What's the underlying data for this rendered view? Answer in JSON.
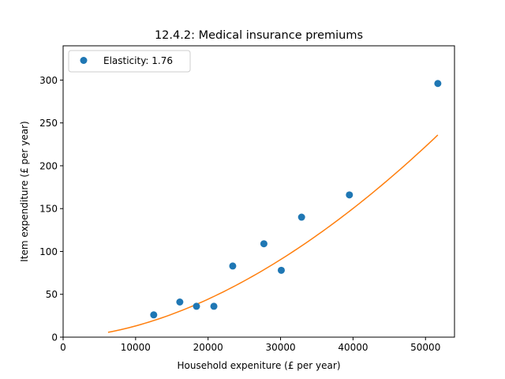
{
  "chart_data": {
    "type": "scatter",
    "title": "12.4.2: Medical insurance premiums",
    "xlabel": "Household expeniture (£ per year)",
    "ylabel": "Item expenditure (£ per year)",
    "xlim": [
      0,
      54000
    ],
    "ylim": [
      0,
      340
    ],
    "xticks": [
      0,
      10000,
      20000,
      30000,
      40000,
      50000
    ],
    "yticks": [
      0,
      50,
      100,
      150,
      200,
      250,
      300
    ],
    "grid": false,
    "legend_position": "top-left",
    "series": [
      {
        "name": "Elasticity: 1.76",
        "kind": "scatter",
        "color": "#1f77b4",
        "points": [
          {
            "x": 12500,
            "y": 26
          },
          {
            "x": 16100,
            "y": 41
          },
          {
            "x": 18400,
            "y": 36
          },
          {
            "x": 20800,
            "y": 36
          },
          {
            "x": 23400,
            "y": 83
          },
          {
            "x": 27700,
            "y": 109
          },
          {
            "x": 30100,
            "y": 78
          },
          {
            "x": 32900,
            "y": 140
          },
          {
            "x": 39500,
            "y": 166
          },
          {
            "x": 51700,
            "y": 296
          }
        ]
      },
      {
        "kind": "line",
        "color": "#ff7f0e",
        "x_range": [
          6200,
          51700
        ],
        "model": "power",
        "coefficient": 1.194e-06,
        "exponent": 1.76
      }
    ]
  }
}
